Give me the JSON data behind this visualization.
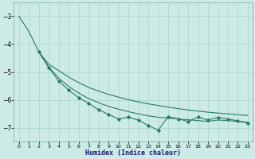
{
  "line1_x": [
    0,
    1,
    2,
    3,
    4,
    5,
    6,
    7,
    8,
    9,
    10,
    11,
    12,
    13,
    14,
    15,
    16,
    17,
    18,
    19,
    20,
    21,
    22,
    23
  ],
  "line1_y": [
    -3.0,
    -3.55,
    -4.28,
    -4.72,
    -4.95,
    -5.18,
    -5.38,
    -5.55,
    -5.68,
    -5.8,
    -5.9,
    -5.99,
    -6.07,
    -6.14,
    -6.2,
    -6.26,
    -6.31,
    -6.36,
    -6.4,
    -6.44,
    -6.47,
    -6.5,
    -6.53,
    -6.56
  ],
  "line2_x": [
    2,
    3,
    4,
    5,
    6,
    7,
    8,
    9,
    10,
    11,
    12,
    13,
    14,
    15,
    16,
    17,
    18,
    19,
    20,
    21,
    22,
    23
  ],
  "line2_y": [
    -4.28,
    -4.82,
    -5.22,
    -5.52,
    -5.75,
    -5.95,
    -6.1,
    -6.23,
    -6.33,
    -6.42,
    -6.5,
    -6.57,
    -6.62,
    -6.65,
    -6.68,
    -6.71,
    -6.74,
    -6.77,
    -6.72,
    -6.74,
    -6.77,
    -6.8
  ],
  "line3_x": [
    2,
    3,
    4,
    5,
    6,
    7,
    8,
    9,
    10,
    11,
    12,
    13,
    14,
    15,
    16,
    17,
    18,
    19,
    20,
    21,
    22,
    23
  ],
  "line3_y": [
    -4.28,
    -4.85,
    -5.32,
    -5.65,
    -5.92,
    -6.12,
    -6.35,
    -6.52,
    -6.68,
    -6.62,
    -6.72,
    -6.92,
    -7.08,
    -6.6,
    -6.68,
    -6.77,
    -6.62,
    -6.72,
    -6.63,
    -6.68,
    -6.75,
    -6.83
  ],
  "color": "#2a7a68",
  "bg_color": "#cceae6",
  "grid_color": "#aad4ce",
  "xlabel": "Humidex (Indice chaleur)",
  "ylim": [
    -7.5,
    -2.5
  ],
  "xlim": [
    -0.5,
    23.5
  ],
  "yticks": [
    -7,
    -6,
    -5,
    -4,
    -3
  ],
  "xticks": [
    0,
    1,
    2,
    3,
    4,
    5,
    6,
    7,
    8,
    9,
    10,
    11,
    12,
    13,
    14,
    15,
    16,
    17,
    18,
    19,
    20,
    21,
    22,
    23
  ]
}
